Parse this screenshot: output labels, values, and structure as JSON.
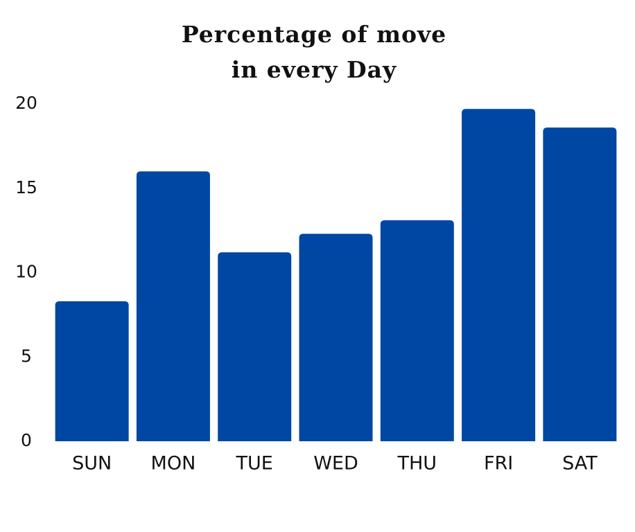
{
  "chart_data": {
    "type": "bar",
    "title": [
      "Percentage of move",
      "in every Day"
    ],
    "categories": [
      "SUN",
      "MON",
      "TUE",
      "WED",
      "THU",
      "FRI",
      "SAT"
    ],
    "values": [
      8.3,
      16,
      11.2,
      12.3,
      13.1,
      19.7,
      18.6
    ],
    "color": "#0047a3",
    "ylim": [
      0,
      20
    ],
    "yticks": [
      0,
      5,
      10,
      15,
      20
    ],
    "grid": false
  }
}
